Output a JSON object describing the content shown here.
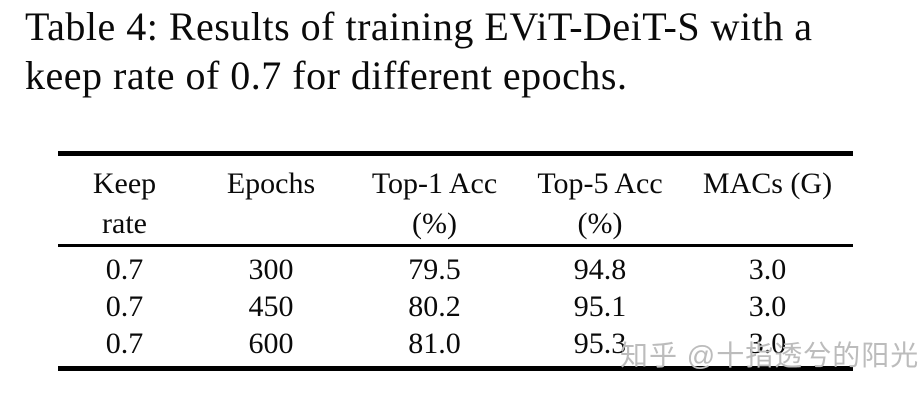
{
  "caption": {
    "line1": "Table 4: Results of training EViT-DeiT-S with a",
    "line2": "keep rate of 0.7 for different epochs."
  },
  "table": {
    "columns": [
      {
        "line1": "Keep",
        "line2": "rate"
      },
      {
        "line1": "Epochs",
        "line2": ""
      },
      {
        "line1": "Top-1 Acc",
        "line2": "(%)"
      },
      {
        "line1": "Top-5 Acc",
        "line2": "(%)"
      },
      {
        "line1": "MACs (G)",
        "line2": ""
      }
    ],
    "rows": [
      [
        "0.7",
        "300",
        "79.5",
        "94.8",
        "3.0"
      ],
      [
        "0.7",
        "450",
        "80.2",
        "95.1",
        "3.0"
      ],
      [
        "0.7",
        "600",
        "81.0",
        "95.3",
        "3.0"
      ]
    ]
  },
  "chart_data": {
    "type": "table",
    "title": "Table 4: Results of training EViT-DeiT-S with a keep rate of 0.7 for different epochs.",
    "columns": [
      "Keep rate",
      "Epochs",
      "Top-1 Acc (%)",
      "Top-5 Acc (%)",
      "MACs (G)"
    ],
    "rows": [
      [
        0.7,
        300,
        79.5,
        94.8,
        3.0
      ],
      [
        0.7,
        450,
        80.2,
        95.1,
        3.0
      ],
      [
        0.7,
        600,
        81.0,
        95.3,
        3.0
      ]
    ]
  },
  "watermark": {
    "text": "知乎 @十指透兮的阳光",
    "color": "#bcbcbc"
  },
  "colors": {
    "background": "#ffffff",
    "text": "#0a0a0a",
    "rule": "#000000"
  }
}
